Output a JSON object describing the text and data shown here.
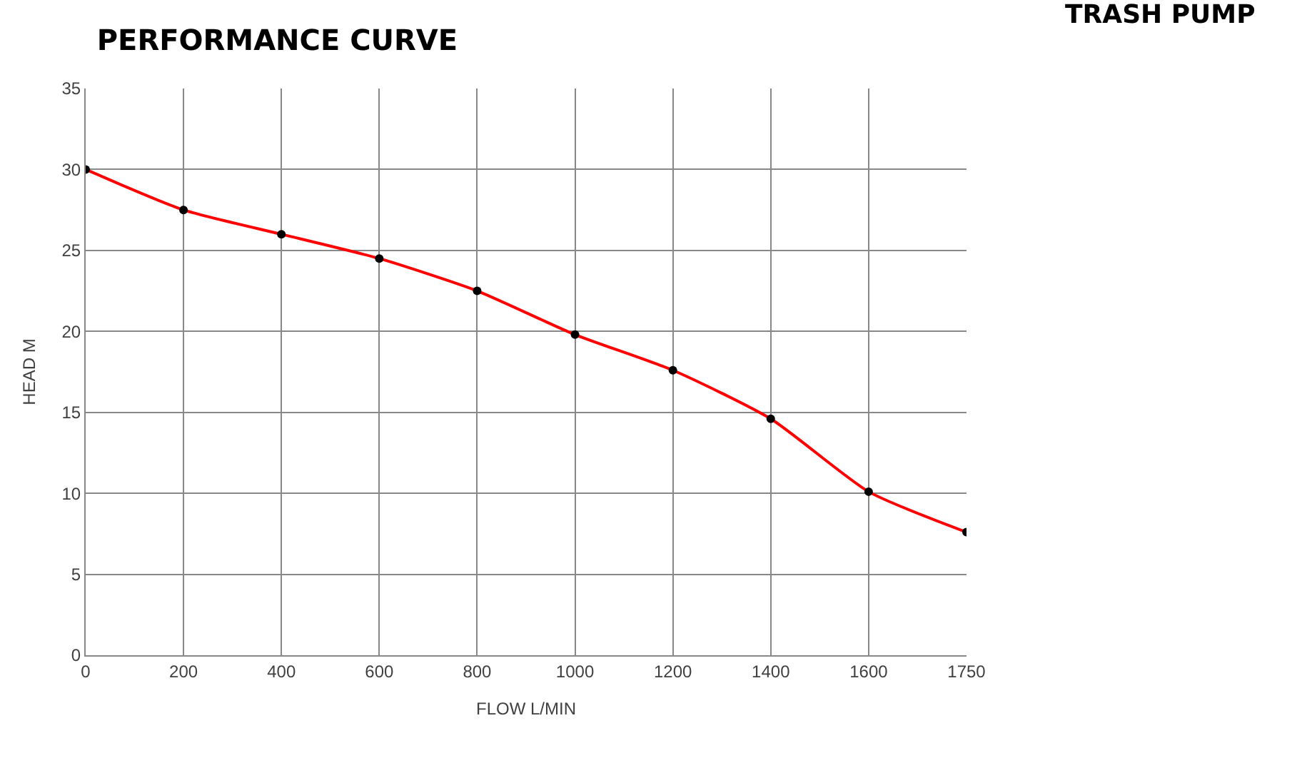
{
  "chart_data": {
    "type": "line",
    "title": "PERFORMANCE CURVE",
    "subtitle": "TRASH PUMP",
    "xlabel": "FLOW L/MIN",
    "ylabel": "HEAD M",
    "categories": [
      "0",
      "200",
      "400",
      "600",
      "800",
      "1000",
      "1200",
      "1400",
      "1600",
      "1750"
    ],
    "series": [
      {
        "color": "#ff0000",
        "values": [
          30,
          27.5,
          26,
          24.5,
          22.5,
          19.8,
          17.6,
          14.6,
          10.1,
          7.6
        ]
      }
    ],
    "ylim": [
      0,
      35
    ],
    "yticks": [
      0,
      5,
      10,
      15,
      20,
      25,
      30,
      35
    ],
    "grid": true,
    "marker": "circle",
    "line_style": "solid"
  }
}
